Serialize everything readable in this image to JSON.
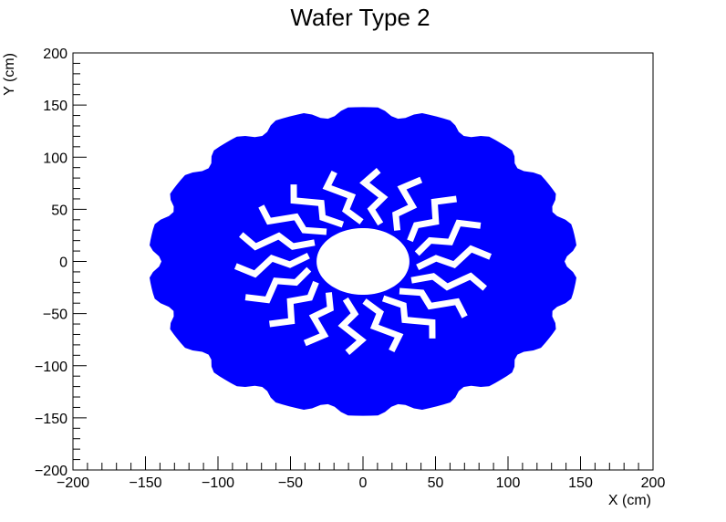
{
  "chart_data": {
    "type": "scatter",
    "title": "Wafer Type 2",
    "xlabel": "X (cm)",
    "ylabel": "Y (cm)",
    "xlim": [
      -200,
      200
    ],
    "ylim": [
      -200,
      200
    ],
    "x_ticks": [
      "−200",
      "−150",
      "−100",
      "−50",
      "0",
      "50",
      "100",
      "150",
      "200"
    ],
    "y_ticks": [
      "−200",
      "−150",
      "−100",
      "−50",
      "0",
      "50",
      "100",
      "150",
      "200"
    ],
    "grid": false,
    "legend": "none",
    "marker_color": "#0000ff",
    "distribution": {
      "shape": "annulus",
      "center": [
        0,
        0
      ],
      "outer_radius": 150,
      "inner_hole_radius": 32,
      "inner_band_outer_radius": 88,
      "inner_band_gap_pattern": "chevron strips"
    },
    "series": [
      {
        "marker": "filled hexagon",
        "color": "#0000ff"
      }
    ]
  }
}
